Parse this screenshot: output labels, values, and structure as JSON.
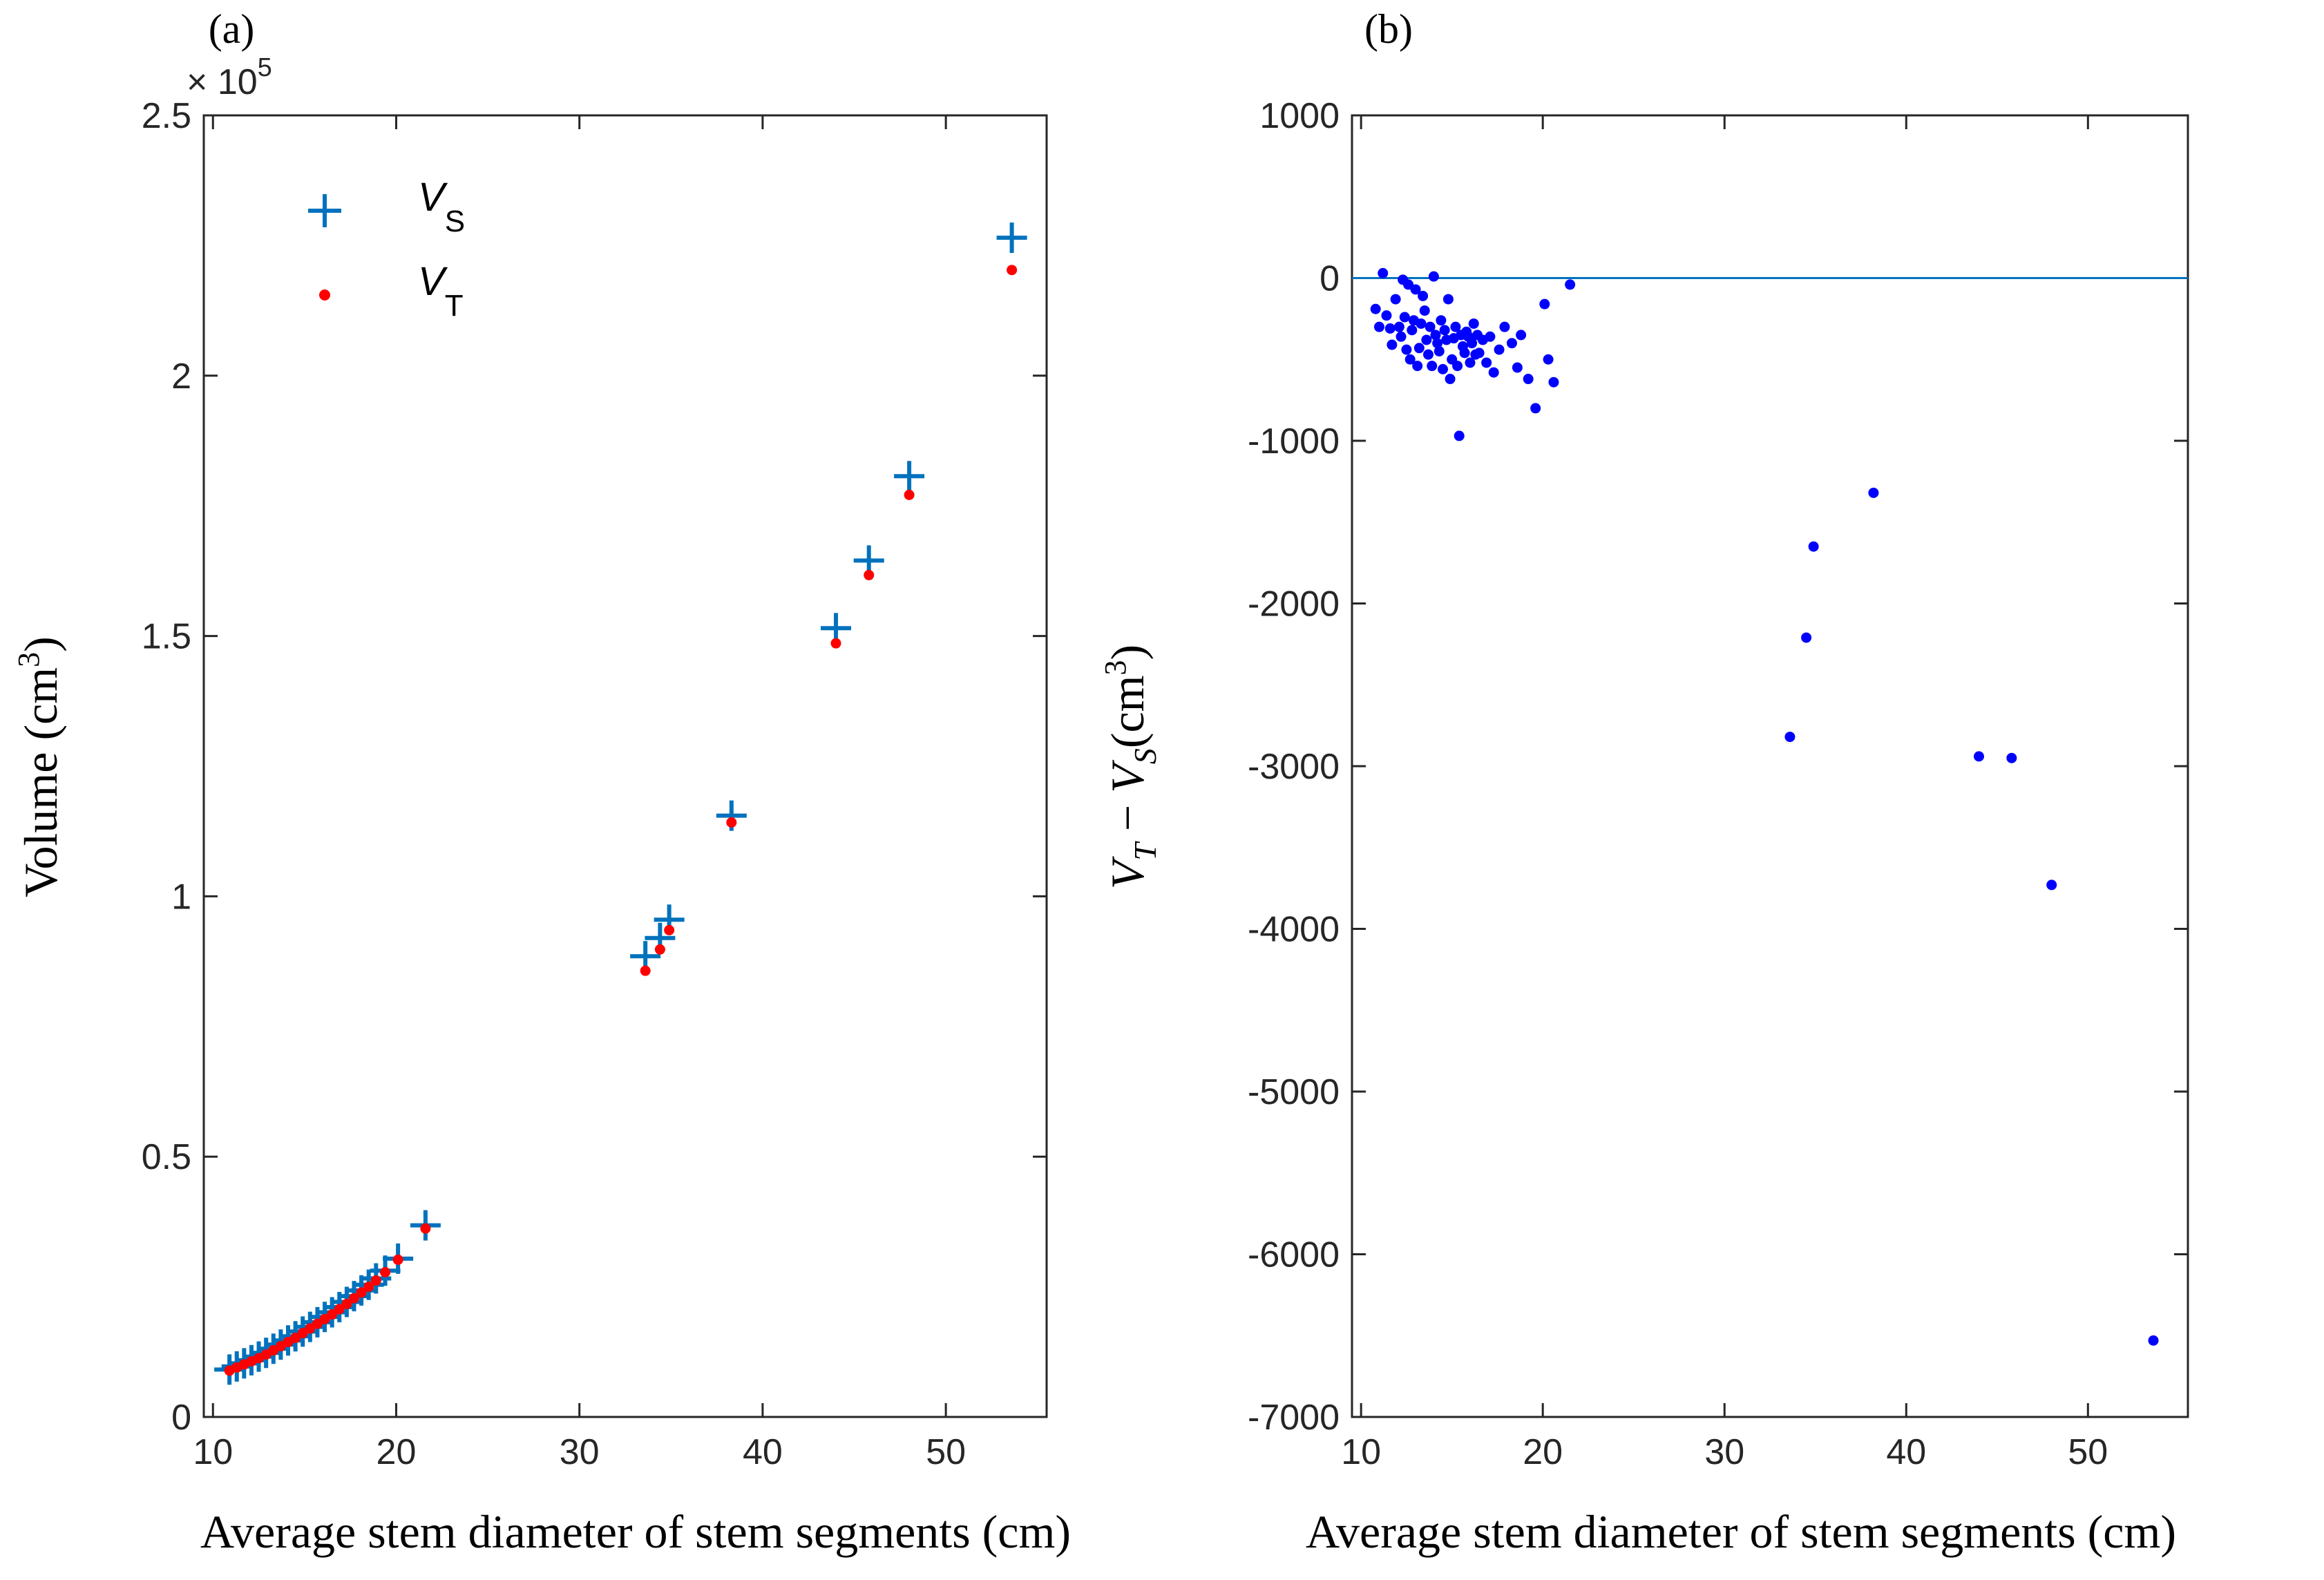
{
  "chart_data": [
    {
      "panel_label": "(a)",
      "type": "scatter",
      "title": "",
      "xlabel": "Average stem diameter of stem segments (cm)",
      "ylabel_text": "Volume (cm",
      "ylabel_exp": "3",
      "ylabel_close": ")",
      "multiplier_base": "× 10",
      "multiplier_exp": "5",
      "xlim": [
        9.5,
        55.5
      ],
      "ylim": [
        0,
        2.5
      ],
      "xticks": [
        10,
        20,
        30,
        40,
        50
      ],
      "xtick_labels": [
        "10",
        "20",
        "30",
        "40",
        "50"
      ],
      "yticks": [
        0,
        0.5,
        1,
        1.5,
        2,
        2.5
      ],
      "ytick_labels": [
        "0",
        "0.5",
        "1",
        "1.5",
        "2",
        "2.5"
      ],
      "grid": false,
      "legend_position": "top-left",
      "series": [
        {
          "name": "V",
          "name_sub": "S",
          "marker": "plus",
          "color": "#0072BD",
          "x": [
            10.9,
            11.3,
            11.7,
            12.1,
            12.5,
            12.9,
            13.3,
            13.7,
            14.1,
            14.5,
            14.9,
            15.3,
            15.7,
            16.1,
            16.5,
            16.9,
            17.3,
            17.7,
            18.1,
            18.5,
            18.9,
            19.4,
            20.1,
            21.6,
            33.6,
            34.4,
            34.9,
            38.3,
            44.0,
            45.8,
            48.0,
            53.6
          ],
          "y": [
            0.091,
            0.097,
            0.103,
            0.109,
            0.116,
            0.123,
            0.131,
            0.139,
            0.147,
            0.155,
            0.164,
            0.173,
            0.182,
            0.192,
            0.201,
            0.211,
            0.221,
            0.232,
            0.243,
            0.254,
            0.266,
            0.281,
            0.304,
            0.368,
            0.885,
            0.92,
            0.955,
            1.155,
            1.515,
            1.645,
            1.807,
            2.265
          ]
        },
        {
          "name": "V",
          "name_sub": "T",
          "marker": "dot",
          "color": "#FF0000",
          "x": [
            10.9,
            11.3,
            11.7,
            12.1,
            12.5,
            12.9,
            13.3,
            13.7,
            14.1,
            14.5,
            14.9,
            15.3,
            15.7,
            16.1,
            16.5,
            16.9,
            17.3,
            17.7,
            18.1,
            18.5,
            18.9,
            19.4,
            20.1,
            21.6,
            33.6,
            34.4,
            34.9,
            38.3,
            44.0,
            45.8,
            48.0,
            53.6
          ],
          "y": [
            0.089,
            0.095,
            0.101,
            0.107,
            0.113,
            0.12,
            0.128,
            0.136,
            0.144,
            0.152,
            0.161,
            0.17,
            0.179,
            0.188,
            0.197,
            0.207,
            0.217,
            0.228,
            0.239,
            0.25,
            0.262,
            0.278,
            0.302,
            0.362,
            0.857,
            0.898,
            0.935,
            1.142,
            1.486,
            1.617,
            1.771,
            2.203
          ]
        }
      ]
    },
    {
      "panel_label": "(b)",
      "type": "scatter",
      "title": "",
      "xlabel": "Average stem diameter of stem segments (cm)",
      "ylabel_v1": "V",
      "ylabel_sub1": "T",
      "ylabel_minus": " − ",
      "ylabel_v2": "V",
      "ylabel_sub2": "S",
      "ylabel_unit": "(cm",
      "ylabel_exp": "3",
      "ylabel_close": ")",
      "xlim": [
        9.5,
        55.5
      ],
      "ylim": [
        -7000,
        1000
      ],
      "xticks": [
        10,
        20,
        30,
        40,
        50
      ],
      "xtick_labels": [
        "10",
        "20",
        "30",
        "40",
        "50"
      ],
      "yticks": [
        -7000,
        -6000,
        -5000,
        -4000,
        -3000,
        -2000,
        -1000,
        0,
        1000
      ],
      "ytick_labels": [
        "-7000",
        "-6000",
        "-5000",
        "-4000",
        "-3000",
        "-2000",
        "-1000",
        "0",
        "1000"
      ],
      "grid": false,
      "reference_line_y": 0,
      "series": [
        {
          "name": "VT - VS",
          "marker": "dot",
          "color": "#0000FF",
          "line_color": "#0072BD",
          "x": [
            10.8,
            11.0,
            11.2,
            11.4,
            11.6,
            11.7,
            11.9,
            12.1,
            12.2,
            12.3,
            12.4,
            12.5,
            12.6,
            12.7,
            12.8,
            12.9,
            13.0,
            13.1,
            13.2,
            13.3,
            13.4,
            13.5,
            13.6,
            13.7,
            13.8,
            13.9,
            14.0,
            14.1,
            14.2,
            14.3,
            14.4,
            14.5,
            14.6,
            14.7,
            14.8,
            14.9,
            15.0,
            15.1,
            15.2,
            15.3,
            15.4,
            15.5,
            15.6,
            15.7,
            15.8,
            15.9,
            16.0,
            16.1,
            16.2,
            16.3,
            16.4,
            16.5,
            16.7,
            16.9,
            17.1,
            17.3,
            17.6,
            17.9,
            18.3,
            18.6,
            18.8,
            19.2,
            19.6,
            20.1,
            20.3,
            20.6,
            21.5,
            33.6,
            34.5,
            34.9,
            38.2,
            44.0,
            45.8,
            48.0,
            53.6
          ],
          "y": [
            -190,
            -300,
            30,
            -230,
            -310,
            -410,
            -130,
            -300,
            -360,
            -10,
            -240,
            -440,
            -40,
            -500,
            -320,
            -260,
            -70,
            -540,
            -430,
            -280,
            -110,
            -200,
            -380,
            -470,
            -300,
            -540,
            10,
            -350,
            -400,
            -450,
            -260,
            -560,
            -320,
            -380,
            -130,
            -620,
            -500,
            -370,
            -300,
            -540,
            -970,
            -350,
            -420,
            -460,
            -330,
            -360,
            -520,
            -400,
            -280,
            -470,
            -350,
            -460,
            -380,
            -520,
            -360,
            -580,
            -440,
            -300,
            -400,
            -550,
            -350,
            -620,
            -800,
            -160,
            -500,
            -640,
            -40,
            -2820,
            -2210,
            -1650,
            -1320,
            -2940,
            -2950,
            -3730,
            -6530
          ]
        }
      ]
    }
  ]
}
